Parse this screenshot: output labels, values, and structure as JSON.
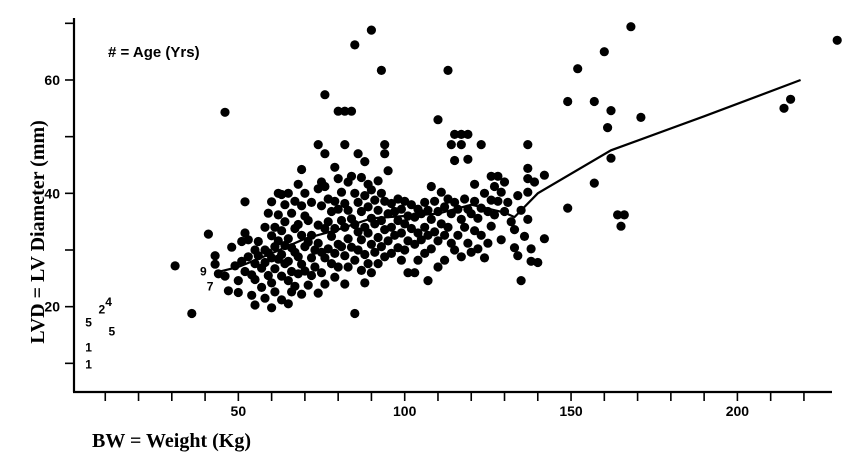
{
  "chart_data": {
    "type": "scatter",
    "xlabel": "BW = Weight (Kg)",
    "ylabel": "LVD = LV Diameter (mm)",
    "annotation": "# = Age (Yrs)",
    "xlim": [
      23,
      230
    ],
    "ylim": [
      6,
      70
    ],
    "xticks": [
      50,
      100,
      150,
      200
    ],
    "yticks": [
      20,
      40,
      60
    ],
    "grid": false,
    "points": [
      [
        31,
        27.2
      ],
      [
        36,
        18.8
      ],
      [
        41,
        32.8
      ],
      [
        43,
        29
      ],
      [
        43,
        27.5
      ],
      [
        44,
        25.8
      ],
      [
        46,
        54.3
      ],
      [
        46,
        25.4
      ],
      [
        47,
        22.8
      ],
      [
        48,
        30.5
      ],
      [
        49,
        27.2
      ],
      [
        50,
        24.6
      ],
      [
        50,
        22.5
      ],
      [
        51,
        31.5
      ],
      [
        51,
        28
      ],
      [
        52,
        38.5
      ],
      [
        52,
        33
      ],
      [
        52,
        26.2
      ],
      [
        53,
        31.8
      ],
      [
        53,
        28.8
      ],
      [
        54,
        25.6
      ],
      [
        54,
        22
      ],
      [
        55,
        30
      ],
      [
        55,
        27.6
      ],
      [
        55,
        24.8
      ],
      [
        55,
        20.3
      ],
      [
        56,
        31.5
      ],
      [
        56,
        29
      ],
      [
        57,
        26.8
      ],
      [
        57,
        23.4
      ],
      [
        58,
        34
      ],
      [
        58,
        30
      ],
      [
        58,
        27.8
      ],
      [
        58,
        21.5
      ],
      [
        59,
        36.5
      ],
      [
        59,
        29.5
      ],
      [
        59,
        25.5
      ],
      [
        60,
        38.5
      ],
      [
        60,
        32.5
      ],
      [
        60,
        28.6
      ],
      [
        60,
        24.2
      ],
      [
        60,
        19.8
      ],
      [
        61,
        34
      ],
      [
        61,
        30.6
      ],
      [
        61,
        26.7
      ],
      [
        61,
        22.6
      ],
      [
        62,
        40
      ],
      [
        62,
        36.2
      ],
      [
        62,
        31.6
      ],
      [
        62,
        28.4
      ],
      [
        63,
        39.8
      ],
      [
        63,
        33.4
      ],
      [
        63,
        29.2
      ],
      [
        63,
        25.4
      ],
      [
        63,
        21.2
      ],
      [
        64,
        38
      ],
      [
        64,
        35
      ],
      [
        64,
        30.8
      ],
      [
        64,
        27.6
      ],
      [
        65,
        40
      ],
      [
        65,
        32
      ],
      [
        65,
        28
      ],
      [
        65,
        24.6
      ],
      [
        65,
        20.5
      ],
      [
        66,
        36.5
      ],
      [
        66,
        30.4
      ],
      [
        66,
        26.2
      ],
      [
        66,
        22.6
      ],
      [
        67,
        38.6
      ],
      [
        67,
        33.8
      ],
      [
        67,
        29.6
      ],
      [
        67,
        23.6
      ],
      [
        68,
        41.6
      ],
      [
        68,
        34.5
      ],
      [
        68,
        28.8
      ],
      [
        68,
        25.8
      ],
      [
        69,
        44.2
      ],
      [
        69,
        37.8
      ],
      [
        69,
        32.6
      ],
      [
        69,
        27.5
      ],
      [
        69,
        22.2
      ],
      [
        70,
        40
      ],
      [
        70,
        36
      ],
      [
        70,
        30.6
      ],
      [
        70,
        26.3
      ],
      [
        71,
        35.2
      ],
      [
        71,
        31.4
      ],
      [
        71,
        23.8
      ],
      [
        72,
        38.4
      ],
      [
        72,
        32.6
      ],
      [
        72,
        28.6
      ],
      [
        72,
        25.5
      ],
      [
        73,
        30
      ],
      [
        73,
        27
      ],
      [
        74,
        48.6
      ],
      [
        74,
        40.8
      ],
      [
        74,
        34.4
      ],
      [
        74,
        31.2
      ],
      [
        74,
        22.4
      ],
      [
        75,
        42
      ],
      [
        75,
        37.8
      ],
      [
        75,
        29.6
      ],
      [
        75,
        26
      ],
      [
        76,
        57.4
      ],
      [
        76,
        47
      ],
      [
        76,
        41.2
      ],
      [
        76,
        33.8
      ],
      [
        76,
        28.6
      ],
      [
        76,
        24
      ],
      [
        77,
        39
      ],
      [
        77,
        35
      ],
      [
        77,
        30.2
      ],
      [
        78,
        36.8
      ],
      [
        78,
        32.4
      ],
      [
        78,
        27.6
      ],
      [
        79,
        44.6
      ],
      [
        79,
        38.6
      ],
      [
        79,
        33.8
      ],
      [
        79,
        29.4
      ],
      [
        79,
        25.2
      ],
      [
        80,
        54.5
      ],
      [
        80,
        42.6
      ],
      [
        80,
        37.2
      ],
      [
        80,
        31
      ],
      [
        80,
        27
      ],
      [
        81,
        40.2
      ],
      [
        81,
        35.2
      ],
      [
        81,
        30.6
      ],
      [
        82,
        54.5
      ],
      [
        82,
        48.6
      ],
      [
        82,
        38.2
      ],
      [
        82,
        34
      ],
      [
        82,
        29
      ],
      [
        82,
        24
      ],
      [
        83,
        42
      ],
      [
        83,
        37
      ],
      [
        83,
        32
      ],
      [
        83,
        27
      ],
      [
        84,
        54.5
      ],
      [
        84,
        43
      ],
      [
        84,
        35.5
      ],
      [
        84,
        30.5
      ],
      [
        85,
        66.2
      ],
      [
        85,
        40
      ],
      [
        85,
        34.5
      ],
      [
        85,
        28.2
      ],
      [
        85,
        18.8
      ],
      [
        86,
        47
      ],
      [
        86,
        38.4
      ],
      [
        86,
        33.2
      ],
      [
        86,
        30
      ],
      [
        87,
        42.8
      ],
      [
        87,
        36.8
      ],
      [
        87,
        31.8
      ],
      [
        87,
        26.4
      ],
      [
        88,
        45.6
      ],
      [
        88,
        39.6
      ],
      [
        88,
        34
      ],
      [
        88,
        29.2
      ],
      [
        88,
        24.2
      ],
      [
        89,
        41.6
      ],
      [
        89,
        37.6
      ],
      [
        89,
        33
      ],
      [
        89,
        27.6
      ],
      [
        90,
        68.8
      ],
      [
        90,
        40.6
      ],
      [
        90,
        35.6
      ],
      [
        90,
        31
      ],
      [
        90,
        26
      ],
      [
        91,
        38.8
      ],
      [
        91,
        34.6
      ],
      [
        91,
        29.6
      ],
      [
        92,
        42.2
      ],
      [
        92,
        37
      ],
      [
        92,
        32.2
      ],
      [
        92,
        27.6
      ],
      [
        93,
        61.7
      ],
      [
        93,
        40
      ],
      [
        93,
        35.2
      ],
      [
        93,
        30.6
      ],
      [
        94,
        48.6
      ],
      [
        94,
        47
      ],
      [
        94,
        38.6
      ],
      [
        94,
        33.6
      ],
      [
        94,
        28.8
      ],
      [
        95,
        44
      ],
      [
        95,
        36.4
      ],
      [
        95,
        31.6
      ],
      [
        96,
        38.2
      ],
      [
        96,
        34
      ],
      [
        96,
        29.4
      ],
      [
        97,
        36.8
      ],
      [
        97,
        32.6
      ],
      [
        98,
        39
      ],
      [
        98,
        35.2
      ],
      [
        98,
        30.4
      ],
      [
        99,
        37.2
      ],
      [
        99,
        33
      ],
      [
        99,
        28.2
      ],
      [
        100,
        38.6
      ],
      [
        100,
        34.6
      ],
      [
        100,
        30
      ],
      [
        101,
        36
      ],
      [
        101,
        31.6
      ],
      [
        101,
        26
      ],
      [
        102,
        38
      ],
      [
        102,
        33.8
      ],
      [
        103,
        35.8
      ],
      [
        103,
        31
      ],
      [
        103,
        26
      ],
      [
        104,
        37.2
      ],
      [
        104,
        33
      ],
      [
        104,
        28.2
      ],
      [
        105,
        36.4
      ],
      [
        105,
        31.8
      ],
      [
        106,
        38.4
      ],
      [
        106,
        34
      ],
      [
        106,
        29.4
      ],
      [
        107,
        37
      ],
      [
        107,
        32.6
      ],
      [
        107,
        24.6
      ],
      [
        108,
        41.2
      ],
      [
        108,
        35.4
      ],
      [
        108,
        30.2
      ],
      [
        109,
        38.6
      ],
      [
        109,
        33.2
      ],
      [
        110,
        53
      ],
      [
        110,
        36.8
      ],
      [
        110,
        31.6
      ],
      [
        110,
        27
      ],
      [
        111,
        40.2
      ],
      [
        111,
        34.6
      ],
      [
        112,
        37.6
      ],
      [
        112,
        32.6
      ],
      [
        112,
        28.2
      ],
      [
        113,
        61.7
      ],
      [
        113,
        39
      ],
      [
        113,
        34
      ],
      [
        114,
        48.6
      ],
      [
        114,
        36.4
      ],
      [
        114,
        31.2
      ],
      [
        115,
        50.4
      ],
      [
        115,
        45.8
      ],
      [
        115,
        38.4
      ],
      [
        115,
        30
      ],
      [
        116,
        37.2
      ],
      [
        116,
        32.6
      ],
      [
        117,
        50.4
      ],
      [
        117,
        48.6
      ],
      [
        117,
        35.4
      ],
      [
        117,
        28.8
      ],
      [
        118,
        39
      ],
      [
        118,
        34
      ],
      [
        119,
        50.4
      ],
      [
        119,
        46
      ],
      [
        119,
        37.2
      ],
      [
        119,
        31.2
      ],
      [
        120,
        36.4
      ],
      [
        120,
        29.6
      ],
      [
        121,
        41.6
      ],
      [
        121,
        38.6
      ],
      [
        121,
        33.4
      ],
      [
        122,
        35.6
      ],
      [
        122,
        30.2
      ],
      [
        123,
        48.6
      ],
      [
        123,
        37.4
      ],
      [
        123,
        32.6
      ],
      [
        124,
        40
      ],
      [
        124,
        28.6
      ],
      [
        125,
        36.8
      ],
      [
        125,
        31.2
      ],
      [
        126,
        43
      ],
      [
        126,
        38.8
      ],
      [
        126,
        34.2
      ],
      [
        127,
        41.2
      ],
      [
        127,
        36.2
      ],
      [
        128,
        43
      ],
      [
        128,
        38.6
      ],
      [
        129,
        40.2
      ],
      [
        129,
        31.8
      ],
      [
        130,
        42
      ],
      [
        130,
        36.8
      ],
      [
        131,
        38.4
      ],
      [
        132,
        35
      ],
      [
        133,
        33.6
      ],
      [
        133,
        30.4
      ],
      [
        134,
        39.6
      ],
      [
        134,
        29
      ],
      [
        135,
        37
      ],
      [
        135,
        24.6
      ],
      [
        136,
        32.4
      ],
      [
        137,
        48.6
      ],
      [
        137,
        44.4
      ],
      [
        137,
        42.6
      ],
      [
        137,
        40.2
      ],
      [
        137,
        35.4
      ],
      [
        138,
        30.2
      ],
      [
        138,
        28
      ],
      [
        139,
        42
      ],
      [
        140,
        27.8
      ],
      [
        142,
        43.2
      ],
      [
        142,
        32
      ],
      [
        149,
        56.2
      ],
      [
        149,
        37.4
      ],
      [
        152,
        62
      ],
      [
        157,
        56.2
      ],
      [
        157,
        41.8
      ],
      [
        160,
        65
      ],
      [
        161,
        51.6
      ],
      [
        162,
        54.6
      ],
      [
        162,
        46.2
      ],
      [
        164,
        36.2
      ],
      [
        165,
        34.2
      ],
      [
        166,
        36.2
      ],
      [
        168,
        69.4
      ],
      [
        171,
        53.4
      ],
      [
        214,
        55
      ],
      [
        216,
        56.6
      ],
      [
        230,
        67
      ]
    ],
    "age_labels": [
      {
        "x": 5,
        "y": 9.8,
        "text": "1"
      },
      {
        "x": 5,
        "y": 12.8,
        "text": "1"
      },
      {
        "x": 5,
        "y": 17.2,
        "text": "5"
      },
      {
        "x": 9,
        "y": 19.5,
        "text": "2"
      },
      {
        "x": 11,
        "y": 20.8,
        "text": "4"
      },
      {
        "x": 12,
        "y": 15.6,
        "text": "5"
      },
      {
        "x": 39.5,
        "y": 26.2,
        "text": "9"
      },
      {
        "x": 41.5,
        "y": 23.6,
        "text": "7"
      }
    ],
    "trend_line": [
      [
        43,
        26
      ],
      [
        50,
        27
      ],
      [
        60,
        29.4
      ],
      [
        70,
        32
      ],
      [
        80,
        33.6
      ],
      [
        90,
        35.6
      ],
      [
        100,
        36
      ],
      [
        110,
        36.4
      ],
      [
        120,
        38
      ],
      [
        130,
        36.6
      ],
      [
        133,
        35.8
      ],
      [
        140,
        40
      ],
      [
        162,
        47.6
      ],
      [
        190,
        53.6
      ],
      [
        219,
        60
      ]
    ]
  }
}
